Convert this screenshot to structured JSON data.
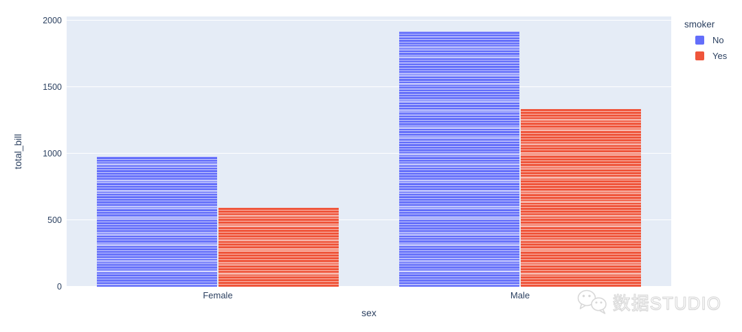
{
  "chart_data": {
    "type": "bar",
    "barmode": "group",
    "title": "",
    "xlabel": "sex",
    "ylabel": "total_bill",
    "categories": [
      "Female",
      "Male"
    ],
    "series": [
      {
        "name": "No",
        "color": "#636EFA",
        "values": [
          977.68,
          1919.75
        ],
        "segment_counts": [
          54,
          97
        ]
      },
      {
        "name": "Yes",
        "color": "#EF553B",
        "values": [
          593.27,
          1337.07
        ],
        "segment_counts": [
          33,
          60
        ]
      }
    ],
    "yticks": [
      0,
      500,
      1000,
      1500,
      2000
    ],
    "ylim": [
      0,
      2030
    ],
    "grid": true,
    "legend": {
      "title": "smoker",
      "position": "top-right",
      "entries": [
        "No",
        "Yes"
      ]
    },
    "plot_bgcolor": "#E5ECF6",
    "paper_bgcolor": "#FFFFFF",
    "gridline_color": "#FFFFFF",
    "text_color": "#2a3f5f",
    "stacked_segments": true
  },
  "watermark": {
    "text": "数据STUDIO",
    "icon": "wechat-logo"
  }
}
